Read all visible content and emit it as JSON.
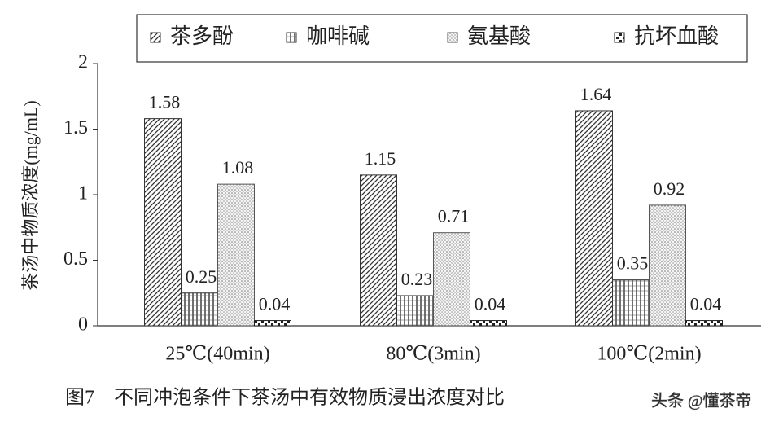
{
  "chart_data": {
    "type": "bar",
    "y_label": "茶汤中物质浓度(mg/mL)",
    "caption": "图7　不同冲泡条件下茶汤中有效物质浸出浓度对比",
    "watermark": "头条 @懂茶帝",
    "categories": [
      "25℃(40min)",
      "80℃(3min)",
      "100℃(2min)"
    ],
    "series": [
      {
        "name": "茶多酚",
        "color": "#333333",
        "pattern": "diagonal",
        "values": [
          1.58,
          1.15,
          1.64
        ]
      },
      {
        "name": "咖啡碱",
        "color": "#333333",
        "pattern": "vertical",
        "values": [
          0.25,
          0.23,
          0.35
        ]
      },
      {
        "name": "氨基酸",
        "color": "#555555",
        "pattern": "dots",
        "values": [
          1.08,
          0.71,
          0.92
        ]
      },
      {
        "name": "抗坏血酸",
        "color": "#222222",
        "pattern": "checker",
        "values": [
          0.04,
          0.04,
          0.04
        ]
      }
    ],
    "ylim": [
      0,
      2
    ],
    "yticks": [
      0,
      0.5,
      1,
      1.5,
      2
    ],
    "grid": false,
    "legend": "top"
  }
}
